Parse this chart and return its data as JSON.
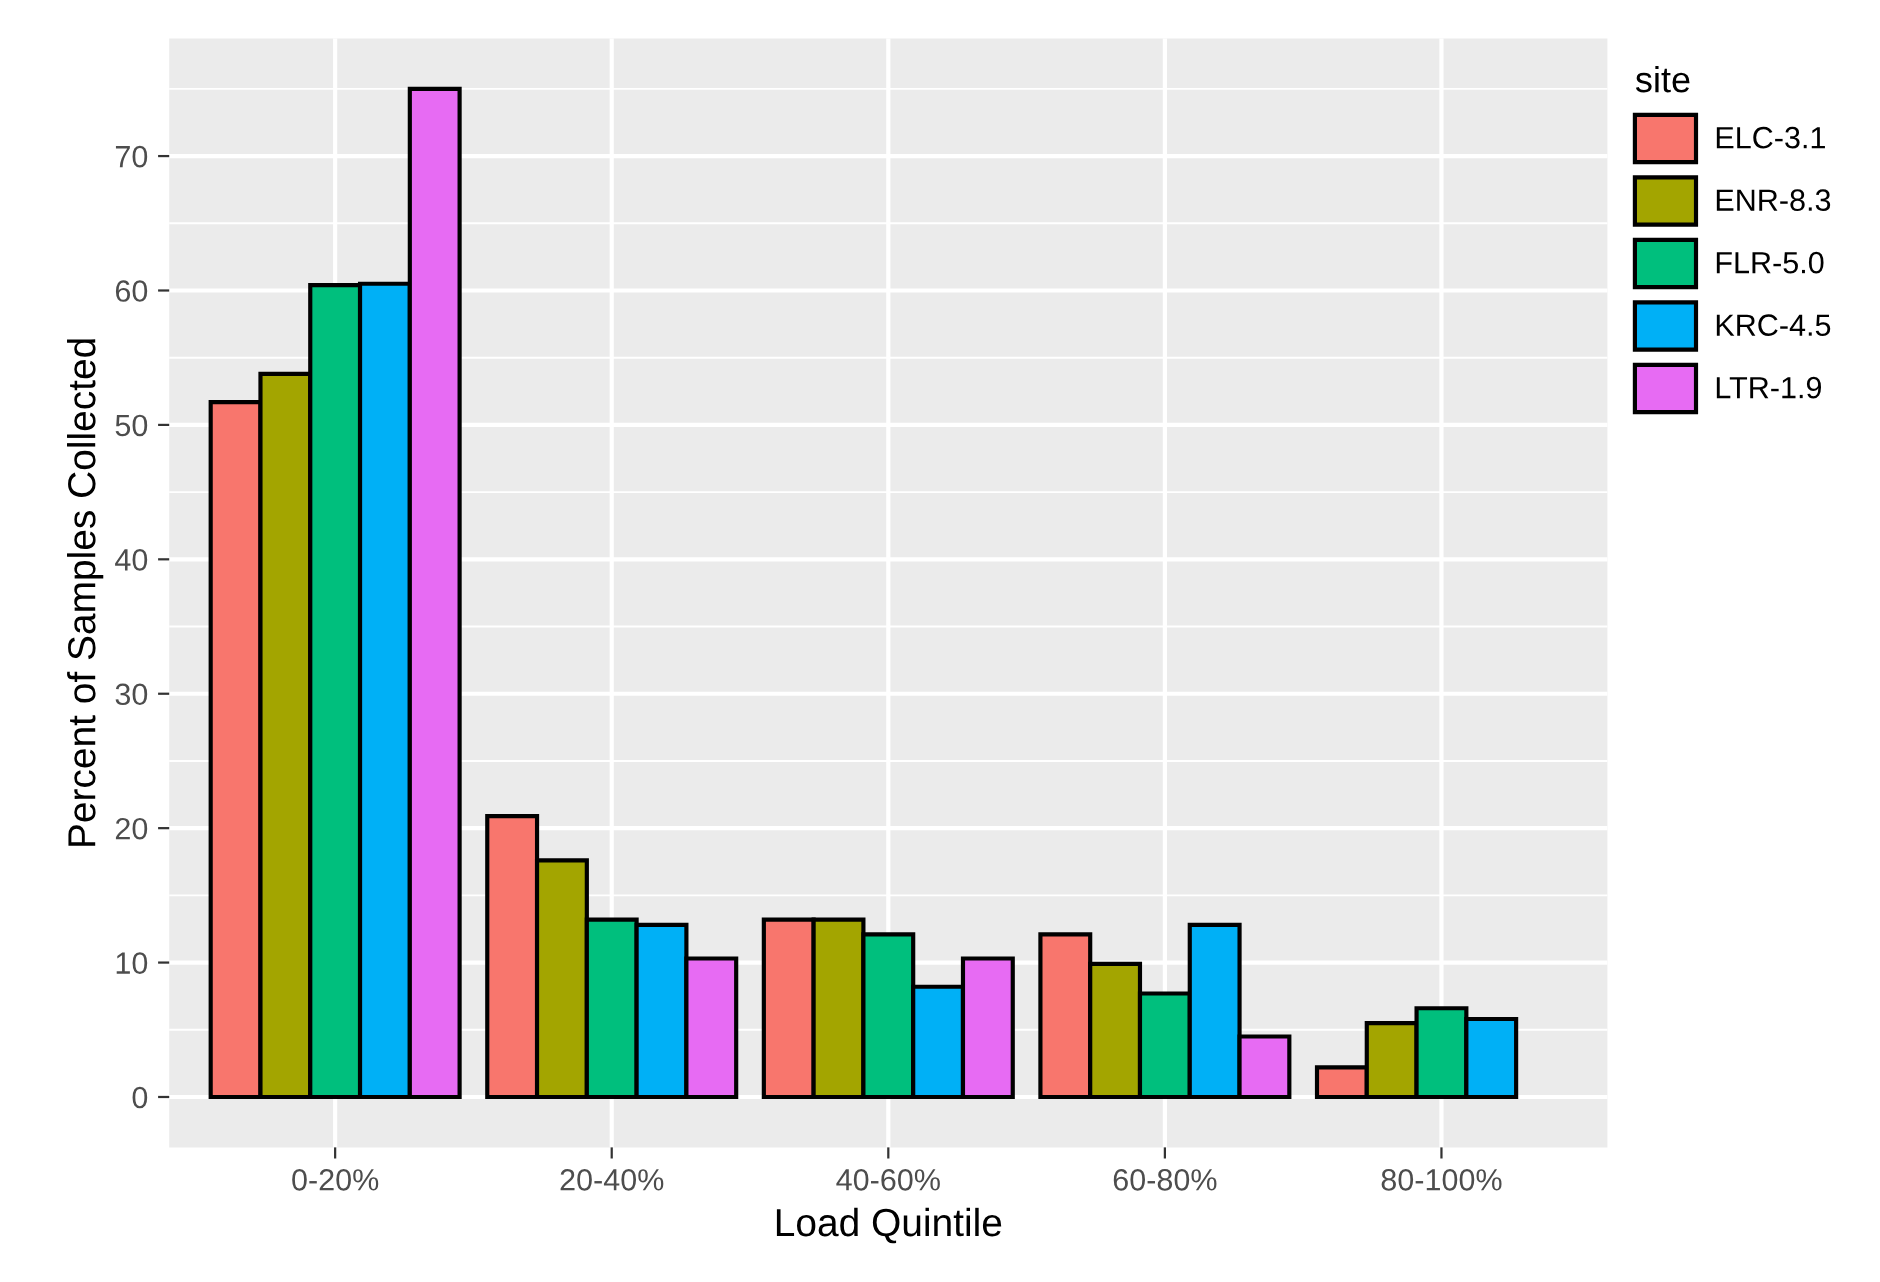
{
  "chart_data": {
    "type": "bar",
    "xlabel": "Load Quintile",
    "ylabel": "Percent of Samples Collected",
    "legend_title": "site",
    "categories": [
      "0-20%",
      "20-40%",
      "40-60%",
      "60-80%",
      "80-100%"
    ],
    "series": [
      {
        "name": "ELC-3.1",
        "color": "#f8766d",
        "values": [
          51.7,
          20.9,
          13.2,
          12.1,
          2.2
        ]
      },
      {
        "name": "ENR-8.3",
        "color": "#a3a500",
        "values": [
          53.8,
          17.6,
          13.2,
          9.9,
          5.5
        ]
      },
      {
        "name": "FLR-5.0",
        "color": "#00bf7d",
        "values": [
          60.4,
          13.2,
          12.1,
          7.7,
          6.6
        ]
      },
      {
        "name": "KRC-4.5",
        "color": "#00b0f6",
        "values": [
          60.5,
          12.8,
          8.2,
          12.8,
          5.8
        ]
      },
      {
        "name": "LTR-1.9",
        "color": "#e76bf3",
        "values": [
          75.0,
          10.3,
          10.3,
          4.5,
          null
        ]
      }
    ],
    "ylim": [
      -3.75,
      78.75
    ],
    "yticks": [
      0,
      10,
      20,
      30,
      40,
      50,
      60,
      70
    ],
    "grid": true,
    "legend": "right"
  }
}
